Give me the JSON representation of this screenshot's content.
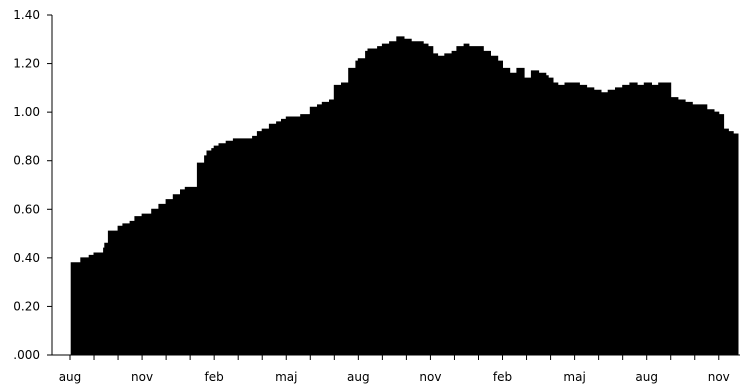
{
  "chart_data": {
    "type": "area",
    "title": "",
    "xlabel": "",
    "ylabel": "",
    "ylim": [
      0,
      1.4
    ],
    "grid": false,
    "legend": "none",
    "fill_color": "#000000",
    "y_ticks": [
      ".000",
      "0.20",
      "0.40",
      "0.60",
      "0.80",
      "1.00",
      "1.20",
      "1.40"
    ],
    "y_tick_values": [
      0,
      0.2,
      0.4,
      0.6,
      0.8,
      1.0,
      1.2,
      1.4
    ],
    "x_tick_labels": [
      "aug",
      "nov",
      "feb",
      "maj",
      "aug",
      "nov",
      "feb",
      "maj",
      "aug",
      "nov"
    ],
    "x_tick_months": [
      0,
      3,
      6,
      9,
      12,
      15,
      18,
      21,
      24,
      27
    ],
    "x_months_range": [
      0,
      27.8
    ],
    "series": [
      {
        "x": [
          0.05,
          0.4,
          0.45,
          0.8,
          1.0,
          1.2,
          1.4,
          1.45,
          1.6,
          2.0,
          2.2,
          2.5,
          2.7,
          3.0,
          3.4,
          3.7,
          4.0,
          4.3,
          4.6,
          4.8,
          5.0,
          5.3,
          5.6,
          5.7,
          5.9,
          6.0,
          6.2,
          6.5,
          6.8,
          7.0,
          7.3,
          7.6,
          7.8,
          8.0,
          8.3,
          8.6,
          8.8,
          9.0,
          9.3,
          9.6,
          10.0,
          10.3,
          10.5,
          10.8,
          11.0,
          11.3,
          11.6,
          11.9,
          12.0,
          12.3,
          12.4,
          12.8,
          13.0,
          13.3,
          13.6,
          13.9,
          14.2,
          14.5,
          14.7,
          14.9,
          15.1,
          15.3,
          15.6,
          15.9,
          16.1,
          16.4,
          16.6,
          16.9,
          17.2,
          17.5,
          17.8,
          18.0,
          18.3,
          18.6,
          18.9,
          19.2,
          19.5,
          19.8,
          19.9,
          20.0,
          20.1,
          20.3,
          20.6,
          20.9,
          21.2,
          21.5,
          21.8,
          22.1,
          22.4,
          22.7,
          23.0,
          23.3,
          23.6,
          23.9,
          24.2,
          24.5,
          24.8,
          25.0,
          25.2,
          25.3,
          25.6,
          25.9,
          26.2,
          26.5,
          26.8,
          27.0,
          27.2,
          27.4,
          27.6,
          27.8
        ],
        "values": [
          0.38,
          0.38,
          0.4,
          0.41,
          0.42,
          0.42,
          0.44,
          0.46,
          0.51,
          0.53,
          0.54,
          0.55,
          0.57,
          0.58,
          0.6,
          0.62,
          0.64,
          0.66,
          0.68,
          0.69,
          0.69,
          0.79,
          0.82,
          0.84,
          0.85,
          0.86,
          0.87,
          0.88,
          0.89,
          0.89,
          0.89,
          0.9,
          0.92,
          0.93,
          0.95,
          0.96,
          0.97,
          0.98,
          0.98,
          0.99,
          1.02,
          1.03,
          1.04,
          1.05,
          1.11,
          1.12,
          1.18,
          1.21,
          1.22,
          1.25,
          1.26,
          1.27,
          1.28,
          1.29,
          1.31,
          1.3,
          1.29,
          1.29,
          1.28,
          1.27,
          1.24,
          1.23,
          1.24,
          1.25,
          1.27,
          1.28,
          1.27,
          1.27,
          1.25,
          1.23,
          1.21,
          1.18,
          1.16,
          1.18,
          1.14,
          1.17,
          1.16,
          1.15,
          1.14,
          1.14,
          1.12,
          1.11,
          1.12,
          1.12,
          1.11,
          1.1,
          1.09,
          1.08,
          1.09,
          1.1,
          1.11,
          1.12,
          1.11,
          1.12,
          1.11,
          1.12,
          1.12,
          1.06,
          1.06,
          1.05,
          1.04,
          1.03,
          1.03,
          1.01,
          1.0,
          0.99,
          0.93,
          0.92,
          0.91,
          0.91
        ]
      }
    ]
  }
}
